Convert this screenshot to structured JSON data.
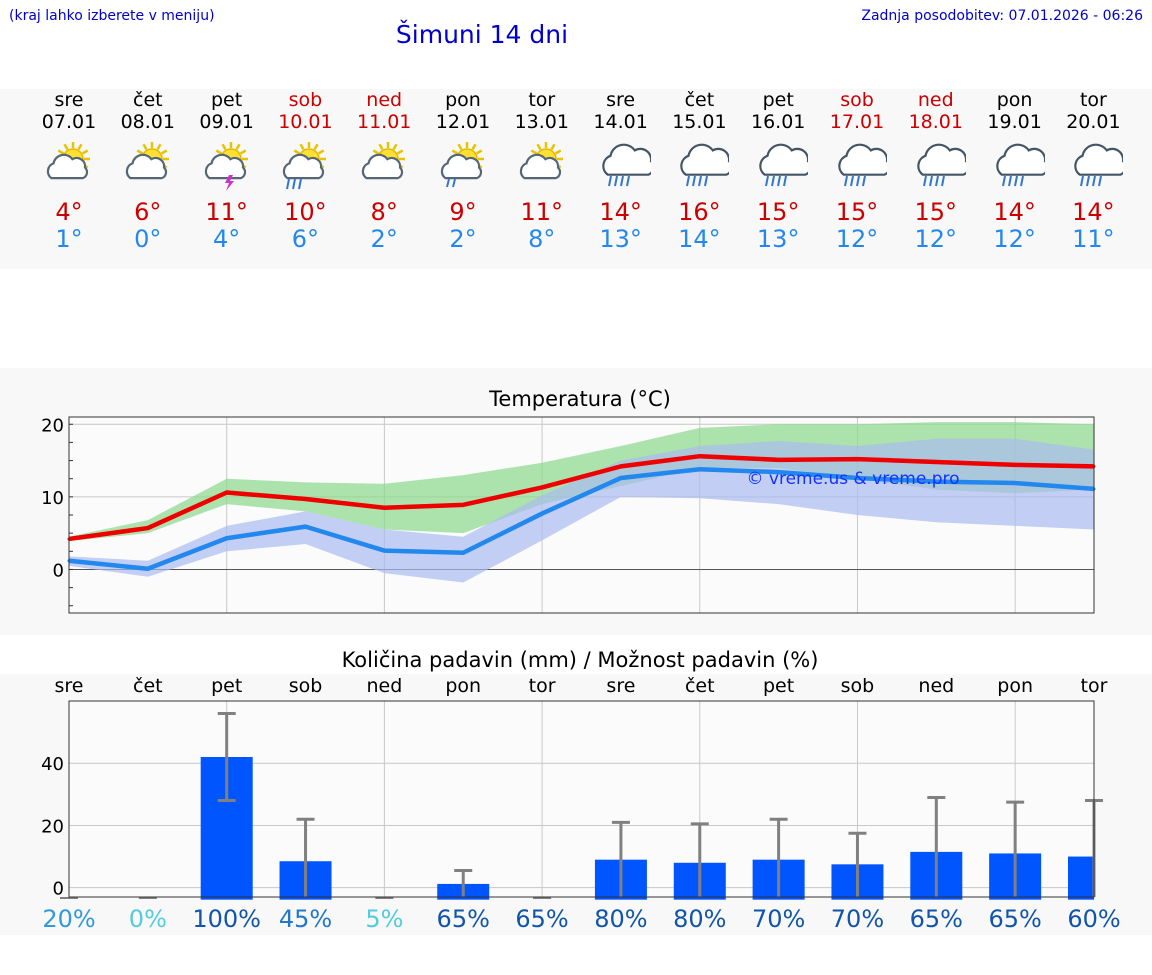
{
  "header": {
    "location_hint": "(kraj lahko izberete v meniju)",
    "title": "Šimuni 14 dni",
    "updated": "Zadnja posodobitev: 07.01.2026 - 06:26"
  },
  "colors": {
    "max": "#cc0000",
    "min": "#2288ee",
    "bar": "#0055ff",
    "text_blue": "#0000cc"
  },
  "days": [
    {
      "name": "sre",
      "date": "07.01",
      "weekend": false,
      "icon": "sun-cloud-icon",
      "max": "4°",
      "min": "1°"
    },
    {
      "name": "čet",
      "date": "08.01",
      "weekend": false,
      "icon": "sun-cloud-icon",
      "max": "6°",
      "min": "0°"
    },
    {
      "name": "pet",
      "date": "09.01",
      "weekend": false,
      "icon": "sun-cloud-thunder-icon",
      "max": "11°",
      "min": "4°"
    },
    {
      "name": "sob",
      "date": "10.01",
      "weekend": true,
      "icon": "sun-cloud-rain-icon",
      "max": "10°",
      "min": "6°"
    },
    {
      "name": "ned",
      "date": "11.01",
      "weekend": true,
      "icon": "sun-cloud-icon",
      "max": "8°",
      "min": "2°"
    },
    {
      "name": "pon",
      "date": "12.01",
      "weekend": false,
      "icon": "sun-cloud-light-rain-icon",
      "max": "9°",
      "min": "2°"
    },
    {
      "name": "tor",
      "date": "13.01",
      "weekend": false,
      "icon": "sun-cloud-icon",
      "max": "11°",
      "min": "8°"
    },
    {
      "name": "sre",
      "date": "14.01",
      "weekend": false,
      "icon": "rain-cloud-icon",
      "max": "14°",
      "min": "13°"
    },
    {
      "name": "čet",
      "date": "15.01",
      "weekend": false,
      "icon": "rain-cloud-icon",
      "max": "16°",
      "min": "14°"
    },
    {
      "name": "pet",
      "date": "16.01",
      "weekend": false,
      "icon": "rain-cloud-icon",
      "max": "15°",
      "min": "13°"
    },
    {
      "name": "sob",
      "date": "17.01",
      "weekend": true,
      "icon": "rain-cloud-icon",
      "max": "15°",
      "min": "12°"
    },
    {
      "name": "ned",
      "date": "18.01",
      "weekend": true,
      "icon": "rain-cloud-icon",
      "max": "15°",
      "min": "12°"
    },
    {
      "name": "pon",
      "date": "19.01",
      "weekend": false,
      "icon": "rain-cloud-icon",
      "max": "14°",
      "min": "12°"
    },
    {
      "name": "tor",
      "date": "20.01",
      "weekend": false,
      "icon": "rain-cloud-icon",
      "max": "14°",
      "min": "11°"
    }
  ],
  "chart_data": [
    {
      "type": "line",
      "title": "Temperatura (°C)",
      "watermark": "© vreme.us & vreme.pro",
      "ylim": [
        -6,
        21
      ],
      "yticks": [
        0,
        10,
        20
      ],
      "ytick_labels": [
        "0",
        "10",
        "20"
      ],
      "x": [
        0,
        1,
        2,
        3,
        4,
        5,
        6,
        7,
        8,
        9,
        10,
        11,
        12,
        13
      ],
      "series": [
        {
          "name": "max",
          "color": "#ee0000",
          "values": [
            4.2,
            5.7,
            10.6,
            9.7,
            8.5,
            8.9,
            11.3,
            14.2,
            15.6,
            15.1,
            15.2,
            14.8,
            14.4,
            14.2
          ]
        },
        {
          "name": "min",
          "color": "#2288ee",
          "values": [
            1.2,
            0.1,
            4.3,
            5.9,
            2.6,
            2.3,
            7.7,
            12.6,
            13.8,
            13.4,
            12.6,
            12.1,
            11.9,
            11.1
          ]
        }
      ],
      "bands": [
        {
          "name": "max-spread",
          "color": "#8ad88a",
          "low": [
            3.9,
            5.0,
            9.0,
            8.0,
            5.5,
            5.0,
            9.0,
            11.5,
            14.0,
            14.0,
            12.5,
            11.0,
            10.5,
            11.0
          ],
          "high": [
            4.5,
            6.8,
            12.5,
            12.0,
            11.8,
            13.0,
            14.7,
            17.0,
            19.5,
            20.0,
            20.0,
            20.3,
            20.3,
            20.0
          ]
        },
        {
          "name": "min-spread",
          "color": "#aabbf0",
          "low": [
            0.5,
            -1.0,
            2.5,
            3.5,
            -0.5,
            -1.8,
            4.0,
            10.0,
            9.8,
            9.0,
            7.5,
            6.5,
            6.0,
            5.5
          ],
          "high": [
            1.8,
            1.2,
            6.0,
            8.0,
            5.5,
            4.5,
            10.2,
            15.0,
            17.0,
            17.7,
            17.0,
            18.0,
            18.0,
            16.5
          ]
        }
      ]
    },
    {
      "type": "bar",
      "title": "Količina padavin (mm) / Možnost padavin (%)",
      "categories": [
        "sre",
        "čet",
        "pet",
        "sob",
        "ned",
        "pon",
        "tor",
        "sre",
        "čet",
        "pet",
        "sob",
        "ned",
        "pon",
        "tor"
      ],
      "ylim": [
        -3,
        60
      ],
      "yticks": [
        0,
        20,
        40
      ],
      "ytick_labels": [
        "0",
        "20",
        "40"
      ],
      "values": [
        0,
        0,
        42,
        8.5,
        0,
        1.2,
        0,
        9,
        8,
        9,
        7.5,
        11.5,
        11,
        10
      ],
      "error_low": [
        0,
        0,
        28,
        0,
        0,
        0,
        0,
        0,
        0,
        0,
        0,
        0,
        0,
        0
      ],
      "error_high": [
        0,
        0,
        56,
        22,
        0,
        5.5,
        0,
        21,
        20.5,
        22,
        17.5,
        29,
        27.5,
        28
      ],
      "probabilities": [
        "20%",
        "0%",
        "100%",
        "45%",
        "5%",
        "65%",
        "65%",
        "80%",
        "80%",
        "70%",
        "70%",
        "65%",
        "65%",
        "60%"
      ],
      "probability_colors": [
        "#3399dd",
        "#55ccdd",
        "#1155aa",
        "#2277cc",
        "#55ccdd",
        "#1155aa",
        "#1155aa",
        "#1155aa",
        "#1155aa",
        "#1155aa",
        "#1155aa",
        "#1155aa",
        "#1155aa",
        "#1155aa"
      ]
    }
  ]
}
